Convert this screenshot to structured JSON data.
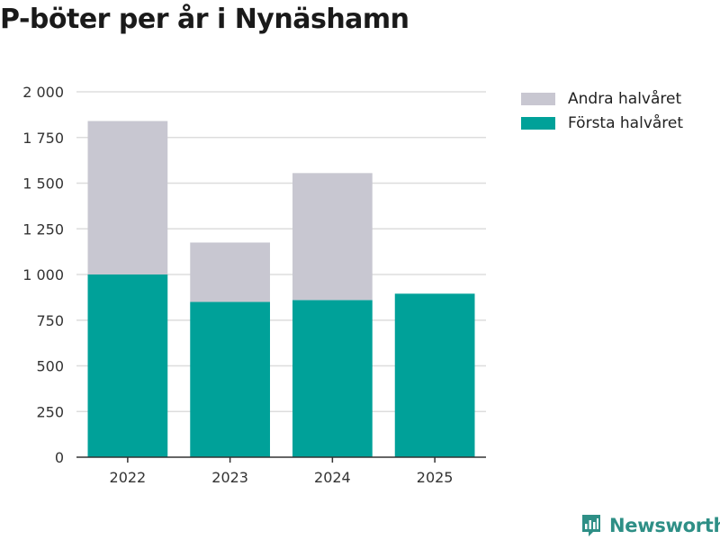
{
  "colors": {
    "first_half": "#00a199",
    "second_half": "#c8c7d1",
    "grid": "#dddddd",
    "axis": "#333333",
    "brand": "#2e8f86"
  },
  "chart_data": {
    "type": "bar",
    "stacked": true,
    "title": "P-böter per år i Nynäshamn",
    "categories": [
      "2022",
      "2023",
      "2024",
      "2025"
    ],
    "series": [
      {
        "name": "Första halvåret",
        "values": [
          1000,
          850,
          860,
          895
        ]
      },
      {
        "name": "Andra halvåret",
        "values": [
          840,
          325,
          695,
          0
        ]
      }
    ],
    "ylim": [
      0,
      2000
    ],
    "yticks": [
      {
        "value": 0,
        "label": "0"
      },
      {
        "value": 250,
        "label": "250"
      },
      {
        "value": 500,
        "label": "500"
      },
      {
        "value": 750,
        "label": "750"
      },
      {
        "value": 1000,
        "label": "1 000"
      },
      {
        "value": 1250,
        "label": "1 250"
      },
      {
        "value": 1500,
        "label": "1 500"
      },
      {
        "value": 1750,
        "label": "1 750"
      },
      {
        "value": 2000,
        "label": "2 000"
      }
    ],
    "xlabel": "",
    "ylabel": "",
    "grid": true,
    "legend_position": "top-right"
  },
  "legend": {
    "items": [
      {
        "label": "Andra halvåret",
        "color": "#c8c7d1"
      },
      {
        "label": "Första halvåret",
        "color": "#00a199"
      }
    ]
  },
  "brand": {
    "name": "Newsworthy"
  }
}
